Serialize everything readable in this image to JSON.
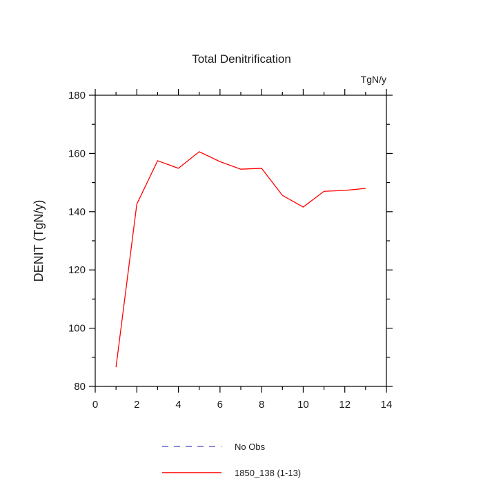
{
  "background_color": "#ffffff",
  "chart_data": {
    "type": "line",
    "title": "Total Denitrification",
    "units_label": "TgN/y",
    "ylabel": "DENIT  (TgN/y)",
    "xlabel": "",
    "xlim": [
      0,
      14
    ],
    "ylim": [
      80,
      180
    ],
    "grid": false,
    "legend_position": "bottom",
    "xticks_major": [
      0,
      2,
      4,
      6,
      8,
      10,
      12,
      14
    ],
    "xticks_minor": [
      1,
      3,
      5,
      7,
      9,
      11,
      13
    ],
    "yticks_major": [
      80,
      100,
      120,
      140,
      160,
      180
    ],
    "yticks_minor": [
      90,
      110,
      130,
      150,
      170
    ],
    "series": [
      {
        "name": "1850_138 (1-13)",
        "color": "#ff0000",
        "style": "solid",
        "x": [
          1,
          2,
          3,
          4,
          5,
          6,
          7,
          8,
          9,
          10,
          11,
          12,
          13
        ],
        "y": [
          86.6,
          142.6,
          157.5,
          154.9,
          160.6,
          157.2,
          154.6,
          154.9,
          145.6,
          141.6,
          147.0,
          147.3,
          148.0
        ]
      }
    ],
    "legend": [
      {
        "label": "No Obs",
        "color": "#6666cc",
        "style": "dashed"
      },
      {
        "label": "1850_138 (1-13)",
        "color": "#ff0000",
        "style": "solid"
      }
    ]
  }
}
